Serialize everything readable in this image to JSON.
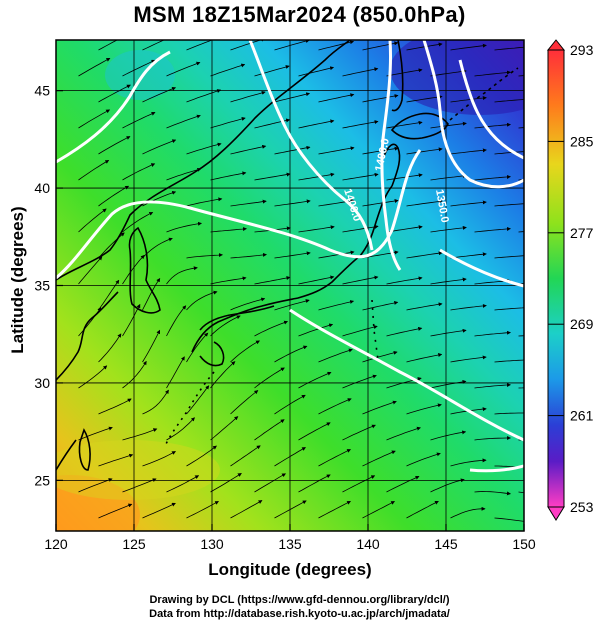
{
  "title": "MSM 18Z15Mar2024 (850.0hPa)",
  "xlabel": "Longitude (degrees)",
  "ylabel": "Latitude  (degrees)",
  "x_ticks": [
    "120",
    "125",
    "130",
    "135",
    "140",
    "145",
    "150"
  ],
  "y_ticks": [
    "25",
    "30",
    "35",
    "40",
    "45"
  ],
  "x_range": [
    120,
    150
  ],
  "y_range": [
    22.4,
    47.6
  ],
  "colorbar": {
    "ticks": [
      "293",
      "285",
      "277",
      "269",
      "261",
      "253"
    ],
    "range": [
      253,
      293
    ],
    "colors": [
      "#ff1d3d",
      "#ff7a1c",
      "#f4d01c",
      "#c8ea1c",
      "#52de22",
      "#1cd690",
      "#1ccbe6",
      "#1c8ee8",
      "#2b49d8",
      "#3d1cc6",
      "#9a1cc6",
      "#ff3dc4"
    ]
  },
  "contour_labels": [
    "1400.0",
    "1400.0",
    "1350.0"
  ],
  "credits": {
    "line1": "Drawing by DCL (https://www.gfd-dennou.org/library/dcl/)",
    "line2": "Data from http://database.rish.kyoto-u.ac.jp/arch/jmadata/"
  }
}
